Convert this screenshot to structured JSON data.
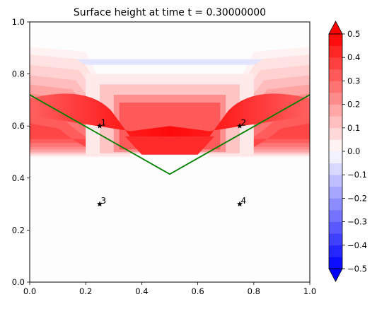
{
  "chart_data": {
    "type": "heatmap",
    "title": "Surface height at time t =     0.30000000",
    "xlim": [
      0,
      1
    ],
    "ylim": [
      0,
      1
    ],
    "x_ticks": [
      0.0,
      0.2,
      0.4,
      0.6,
      0.8,
      1.0
    ],
    "y_ticks": [
      0.0,
      0.2,
      0.4,
      0.6,
      0.8,
      1.0
    ],
    "x_tick_labels": [
      "0.0",
      "0.2",
      "0.4",
      "0.6",
      "0.8",
      "1.0"
    ],
    "y_tick_labels": [
      "0.0",
      "0.2",
      "0.4",
      "0.6",
      "0.8",
      "1.0"
    ],
    "colorbar": {
      "range": [
        -0.5,
        0.5
      ],
      "ticks": [
        -0.5,
        -0.4,
        -0.3,
        -0.2,
        -0.1,
        0.0,
        0.1,
        0.2,
        0.3,
        0.4,
        0.5
      ],
      "tick_labels": [
        "−0.5",
        "−0.4",
        "−0.3",
        "−0.2",
        "−0.1",
        "0.0",
        "0.1",
        "0.2",
        "0.3",
        "0.4",
        "0.5"
      ],
      "levels": 20,
      "colormap": "bwr",
      "extend": "both"
    },
    "line": {
      "color": "#008000",
      "points": [
        [
          0.0,
          0.72
        ],
        [
          0.5,
          0.415
        ],
        [
          1.0,
          0.72
        ]
      ]
    },
    "gauges": [
      {
        "label": "1",
        "x": 0.25,
        "y": 0.6
      },
      {
        "label": "2",
        "x": 0.75,
        "y": 0.6
      },
      {
        "label": "3",
        "x": 0.25,
        "y": 0.3
      },
      {
        "label": "4",
        "x": 0.75,
        "y": 0.3
      }
    ]
  }
}
